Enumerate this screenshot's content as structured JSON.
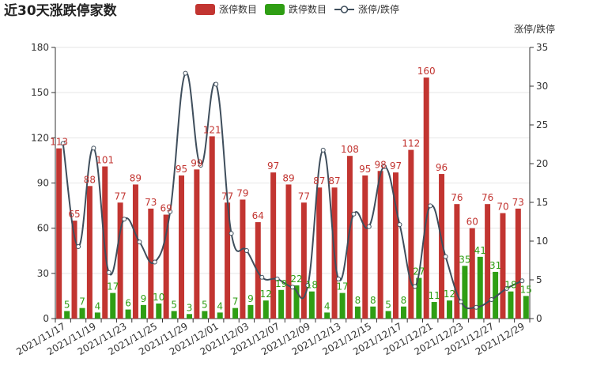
{
  "colors": {
    "up": "#c23531",
    "down": "#2f9e14",
    "ratio": "#3f4e5c",
    "axis": "#333333",
    "grid": "#e6e6e6"
  },
  "chart_data": {
    "type": "bar",
    "title": "近30天涨跌停家数",
    "legend_position": "top-center",
    "categories": [
      "2021/11/17",
      "2021/11/18",
      "2021/11/19",
      "2021/11/22",
      "2021/11/23",
      "2021/11/24",
      "2021/11/25",
      "2021/11/26",
      "2021/11/29",
      "2021/11/30",
      "2021/12/01",
      "2021/12/02",
      "2021/12/03",
      "2021/12/06",
      "2021/12/07",
      "2021/12/08",
      "2021/12/09",
      "2021/12/10",
      "2021/12/13",
      "2021/12/14",
      "2021/12/15",
      "2021/12/16",
      "2021/12/17",
      "2021/12/20",
      "2021/12/21",
      "2021/12/22",
      "2021/12/23",
      "2021/12/24",
      "2021/12/27",
      "2021/12/28",
      "2021/12/29"
    ],
    "x_tick_labels": [
      "2021/11/17",
      "2021/11/19",
      "2021/11/23",
      "2021/11/25",
      "2021/11/29",
      "2021/12/01",
      "2021/12/03",
      "2021/12/07",
      "2021/12/09",
      "2021/12/13",
      "2021/12/15",
      "2021/12/17",
      "2021/12/21",
      "2021/12/23",
      "2021/12/27",
      "2021/12/29"
    ],
    "series": [
      {
        "name": "涨停数目",
        "type": "bar",
        "axis": "left",
        "values": [
          113,
          65,
          88,
          101,
          77,
          89,
          73,
          69,
          95,
          99,
          121,
          77,
          79,
          64,
          97,
          89,
          77,
          87,
          87,
          108,
          95,
          98,
          97,
          112,
          160,
          96,
          76,
          60,
          76,
          70,
          73
        ]
      },
      {
        "name": "跌停数目",
        "type": "bar",
        "axis": "left",
        "values": [
          5,
          7,
          4,
          17,
          6,
          9,
          10,
          5,
          3,
          5,
          4,
          7,
          9,
          12,
          19,
          22,
          18,
          4,
          17,
          8,
          8,
          5,
          8,
          27,
          11,
          12,
          35,
          41,
          31,
          18,
          15
        ]
      },
      {
        "name": "涨停/跌停",
        "type": "line",
        "axis": "right",
        "smooth": true,
        "values": [
          22.6,
          9.29,
          22.0,
          5.94,
          12.83,
          9.89,
          7.3,
          13.8,
          31.67,
          19.8,
          30.25,
          11.0,
          8.78,
          5.33,
          5.11,
          4.05,
          4.28,
          21.75,
          5.12,
          13.5,
          11.88,
          19.6,
          12.13,
          4.15,
          14.55,
          8.0,
          2.17,
          1.46,
          2.45,
          3.89,
          4.87
        ]
      }
    ],
    "y_left": {
      "min": 0,
      "max": 180,
      "ticks": [
        0,
        30,
        60,
        90,
        120,
        150,
        180
      ]
    },
    "y_right": {
      "name": "涨停/跌停",
      "min": 0,
      "max": 35,
      "ticks": [
        0,
        5,
        10,
        15,
        20,
        25,
        30,
        35
      ]
    },
    "grid": "horizontal-lines"
  }
}
